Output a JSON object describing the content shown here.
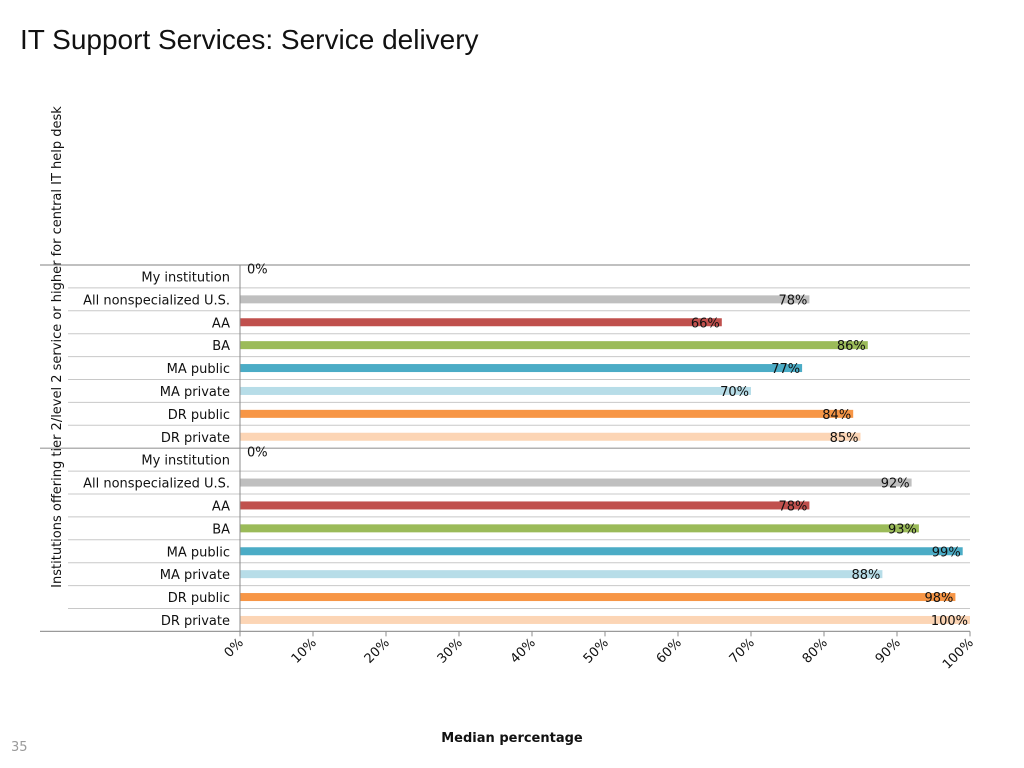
{
  "slide": {
    "title": "IT Support Services: Service delivery",
    "page_number": "35"
  },
  "chart_data": {
    "type": "bar",
    "orientation": "horizontal",
    "xlabel": "Median percentage",
    "ylabel": "Institutions offering tier 2/level 2 service or higher for central IT help desk",
    "xlim": [
      0,
      100
    ],
    "x_ticks": [
      "0%",
      "10%",
      "20%",
      "30%",
      "40%",
      "50%",
      "60%",
      "70%",
      "80%",
      "90%",
      "100%"
    ],
    "grid": false,
    "groups": [
      {
        "categories": [
          "My institution",
          "All nonspecialized U.S.",
          "AA",
          "BA",
          "MA public",
          "MA private",
          "DR public",
          "DR private"
        ],
        "values": [
          0,
          78,
          66,
          86,
          77,
          70,
          84,
          85
        ],
        "value_labels": [
          "0%",
          "78%",
          "66%",
          "86%",
          "77%",
          "70%",
          "84%",
          "85%"
        ]
      },
      {
        "categories": [
          "My institution",
          "All nonspecialized U.S.",
          "AA",
          "BA",
          "MA public",
          "MA private",
          "DR public",
          "DR private"
        ],
        "values": [
          0,
          92,
          78,
          93,
          99,
          88,
          98,
          100
        ],
        "value_labels": [
          "0%",
          "92%",
          "78%",
          "93%",
          "99%",
          "88%",
          "98%",
          "100%"
        ]
      }
    ],
    "category_colors": [
      "#4e81bd",
      "#bfbfbf",
      "#c0504d",
      "#9bbb59",
      "#4bacc6",
      "#b7dde8",
      "#f79646",
      "#fcd5b5"
    ]
  }
}
